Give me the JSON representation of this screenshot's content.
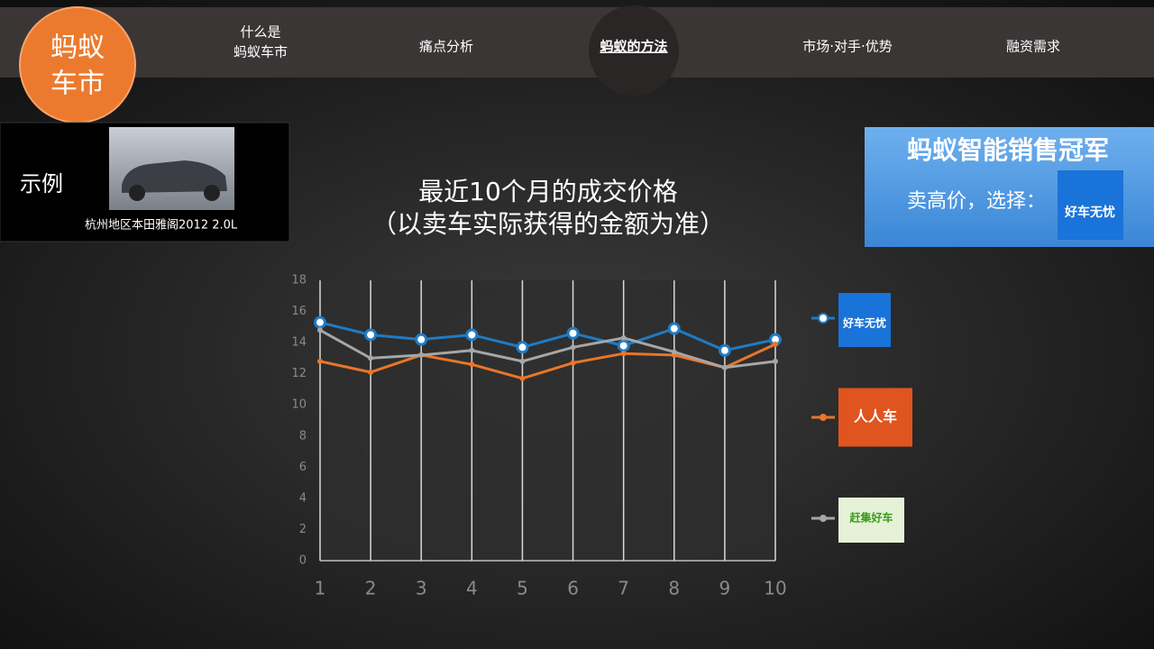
{
  "header": {
    "logo": [
      "蚂蚁",
      "车市"
    ],
    "nav": [
      [
        "什么是",
        "蚂蚁车市"
      ],
      [
        "痛点分析"
      ],
      [
        "蚂蚁的方法"
      ],
      [
        "市场·对手·优势"
      ],
      [
        "融资需求"
      ]
    ],
    "active_nav": 2
  },
  "example": {
    "label": "示例",
    "caption": "杭州地区本田雅阁2012 2.0L"
  },
  "promo": {
    "title": "蚂蚁智能销售冠军",
    "text": "卖高价，选择：",
    "brand": "好车无忧"
  },
  "chart_data": {
    "type": "line",
    "title": "最近10个月的成交价格",
    "subtitle": "（以卖车实际获得的金额为准）",
    "x": [
      1,
      2,
      3,
      4,
      5,
      6,
      7,
      8,
      9,
      10
    ],
    "xlim": [
      1,
      10
    ],
    "xticks": [
      1,
      2,
      3,
      4,
      5,
      6,
      7,
      8,
      9,
      10
    ],
    "ylim": [
      0,
      18
    ],
    "yticks": [
      0,
      2,
      4,
      6,
      8,
      10,
      12,
      14,
      16,
      18
    ],
    "grid": true,
    "series": [
      {
        "name": "好车无忧",
        "color": "#1f7bc4",
        "values": [
          15.3,
          14.5,
          14.2,
          14.5,
          13.7,
          14.6,
          13.8,
          14.9,
          13.5,
          14.2
        ]
      },
      {
        "name": "人人车",
        "color": "#e8762b",
        "values": [
          12.8,
          12.1,
          13.2,
          12.6,
          11.7,
          12.7,
          13.3,
          13.2,
          12.4,
          13.9
        ]
      },
      {
        "name": "赶集好车",
        "color": "#a6a6a6",
        "values": [
          14.8,
          13.0,
          13.2,
          13.5,
          12.8,
          13.7,
          14.3,
          13.4,
          12.4,
          12.8
        ]
      }
    ]
  }
}
